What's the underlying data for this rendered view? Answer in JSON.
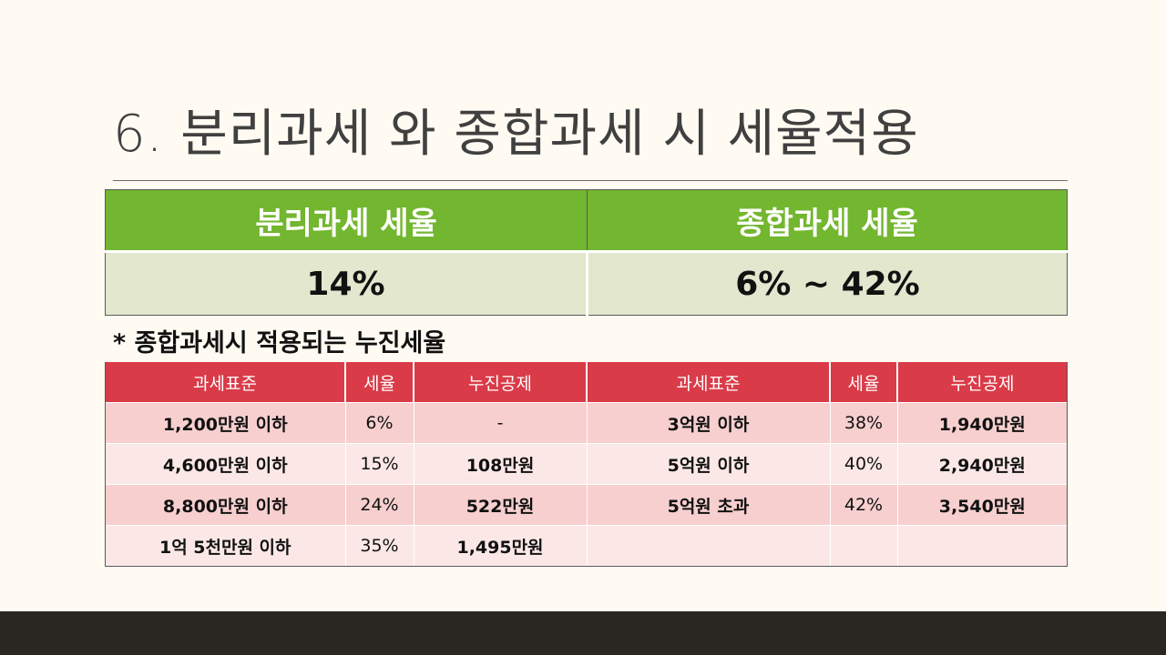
{
  "title": "6. 분리과세 와 종합과세 시 세율적용",
  "rates": {
    "separate_label": "분리과세 세율",
    "comprehensive_label": "종합과세 세율",
    "separate_value": "14%",
    "comprehensive_value": "6% ~ 42%"
  },
  "note": "* 종합과세시 적용되는 누진세율",
  "progressive": {
    "headers": [
      "과세표준",
      "세율",
      "누진공제",
      "과세표준",
      "세율",
      "누진공제"
    ],
    "rows": [
      [
        "1,200만원 이하",
        "6%",
        "-",
        "3억원 이하",
        "38%",
        "1,940만원"
      ],
      [
        "4,600만원  이하",
        "15%",
        "108만원",
        "5억원 이하",
        "40%",
        "2,940만원"
      ],
      [
        "8,800만원  이하",
        "24%",
        "522만원",
        "5억원 초과",
        "42%",
        "3,540만원"
      ],
      [
        "1억 5천만원 이하",
        "35%",
        "1,495만원",
        "",
        "",
        ""
      ]
    ]
  }
}
